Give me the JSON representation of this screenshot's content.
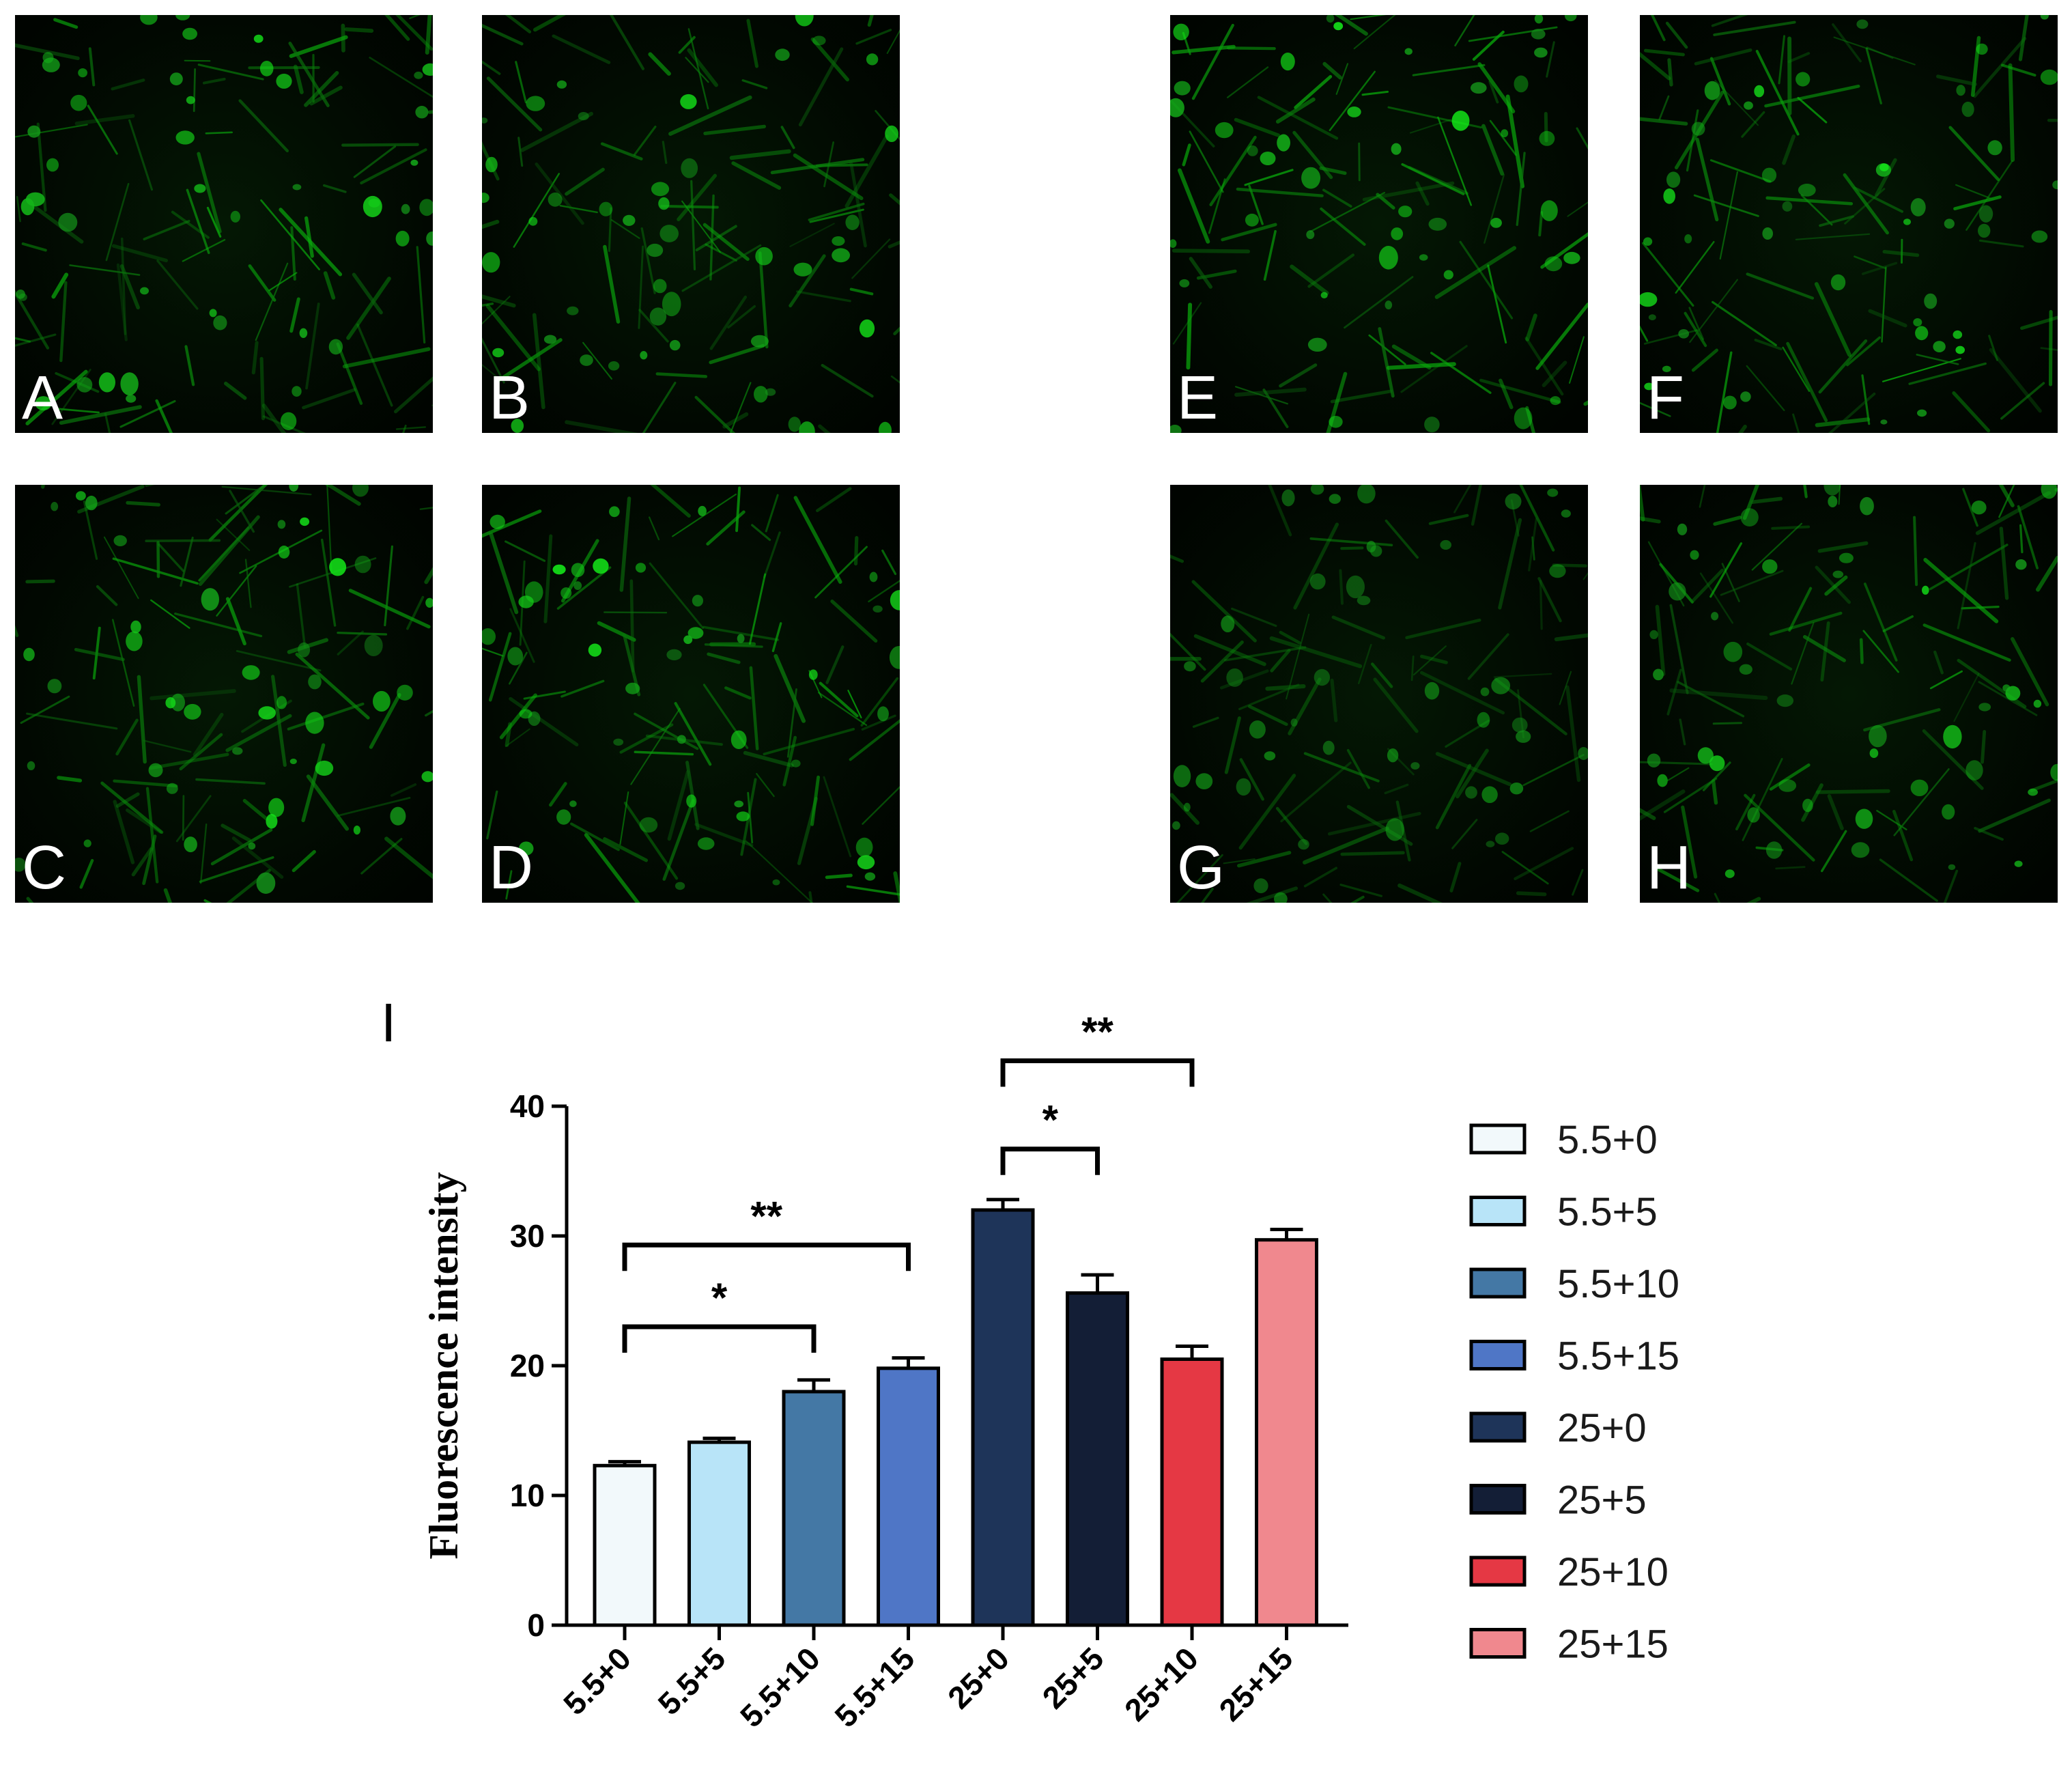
{
  "panels": [
    {
      "id": "a",
      "label": "A",
      "intensity": 0.85
    },
    {
      "id": "b",
      "label": "B",
      "intensity": 0.8
    },
    {
      "id": "e",
      "label": "E",
      "intensity": 0.95
    },
    {
      "id": "f",
      "label": "F",
      "intensity": 0.9
    },
    {
      "id": "c",
      "label": "C",
      "intensity": 0.85
    },
    {
      "id": "d",
      "label": "D",
      "intensity": 0.9
    },
    {
      "id": "g",
      "label": "G",
      "intensity": 0.45
    },
    {
      "id": "h",
      "label": "H",
      "intensity": 0.8
    }
  ],
  "chart_panel_label": "I",
  "chart_data": {
    "type": "bar",
    "categories": [
      "5.5+0",
      "5.5+5",
      "5.5+10",
      "5.5+15",
      "25+0",
      "25+5",
      "25+10",
      "25+15"
    ],
    "values": [
      12.3,
      14.1,
      18.0,
      19.8,
      32.0,
      25.6,
      20.5,
      29.7
    ],
    "errors": [
      0.3,
      0.3,
      0.9,
      0.8,
      0.8,
      1.4,
      1.0,
      0.8
    ],
    "colors": [
      "#f2f9fb",
      "#b8e4f8",
      "#4478a5",
      "#4f76c6",
      "#1e3459",
      "#131e36",
      "#e53844",
      "#f0888e"
    ],
    "ylabel": "Fluorescence intensity",
    "xlabel": "",
    "ylim": [
      0,
      40
    ],
    "yticks": [
      0,
      10,
      20,
      30,
      40
    ],
    "legend": [
      "5.5+0",
      "5.5+5",
      "5.5+10",
      "5.5+15",
      "25+0",
      "25+5",
      "25+10",
      "25+15"
    ],
    "legend_position": "right",
    "significance": [
      {
        "from": 0,
        "to": 2,
        "label": "*",
        "y": 23
      },
      {
        "from": 0,
        "to": 3,
        "label": "**",
        "y": 29.3
      },
      {
        "from": 4,
        "to": 5,
        "label": "*",
        "y": 36.7
      },
      {
        "from": 4,
        "to": 6,
        "label": "**",
        "y": 43.5
      }
    ]
  }
}
